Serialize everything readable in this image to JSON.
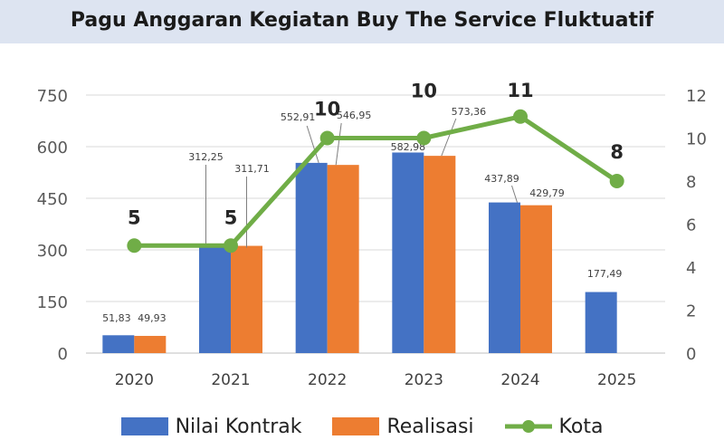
{
  "chart_data": {
    "type": "bar",
    "title": "Pagu Anggaran Kegiatan Buy The Service Fluktuatif",
    "categories": [
      "2020",
      "2021",
      "2022",
      "2023",
      "2024",
      "2025"
    ],
    "series": [
      {
        "name": "Nilai Kontrak",
        "type": "bar",
        "axis": "left",
        "color": "#4472c4",
        "values": [
          51.83,
          312.25,
          552.91,
          582.98,
          437.89,
          177.49
        ],
        "labels": [
          "51,83",
          "312,25",
          "552,91",
          "582,98",
          "437,89",
          "177,49"
        ]
      },
      {
        "name": "Realisasi",
        "type": "bar",
        "axis": "left",
        "color": "#ed7d31",
        "values": [
          49.93,
          311.71,
          546.95,
          573.36,
          429.79,
          null
        ],
        "labels": [
          "49,93",
          "311,71",
          "546,95",
          "573,36",
          "429,79",
          null
        ]
      },
      {
        "name": "Kota",
        "type": "line",
        "axis": "right",
        "color": "#70ad47",
        "values": [
          5,
          5,
          10,
          10,
          11,
          8
        ],
        "labels": [
          "5",
          "5",
          "10",
          "10",
          "11",
          "8"
        ]
      }
    ],
    "y_left": {
      "ylim": [
        0,
        750
      ],
      "ticks": [
        "0",
        "150",
        "300",
        "450",
        "600",
        "750"
      ]
    },
    "y_right": {
      "ylim": [
        0,
        12
      ],
      "ticks": [
        "0",
        "2",
        "4",
        "6",
        "8",
        "10",
        "12"
      ]
    },
    "grid": true,
    "legend_position": "bottom"
  }
}
